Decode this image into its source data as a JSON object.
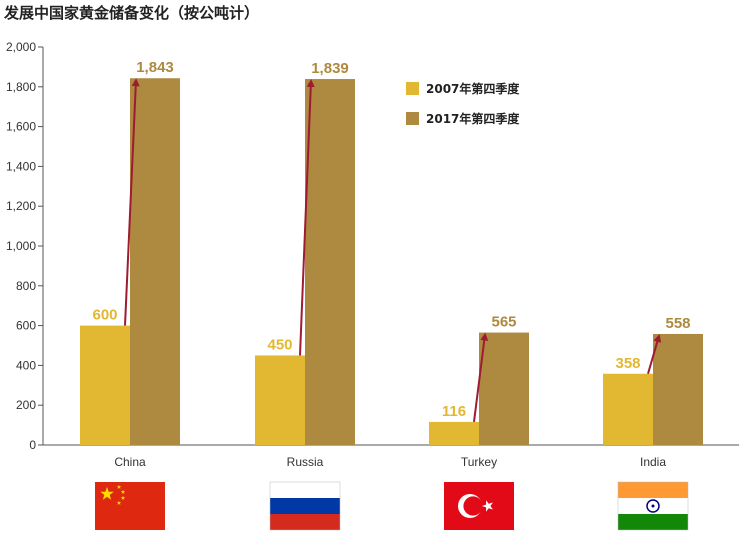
{
  "chart_data": {
    "type": "bar",
    "title": "发展中国家黄金储备变化（按公吨计）",
    "categories": [
      "China",
      "Russia",
      "Turkey",
      "India"
    ],
    "series": [
      {
        "name": "2007年第四季度",
        "values": [
          600,
          450,
          116,
          358
        ],
        "labels": [
          "600",
          "450",
          "116",
          "358"
        ],
        "color": "#E2B731"
      },
      {
        "name": "2017年第四季度",
        "values": [
          1843,
          1839,
          565,
          558
        ],
        "labels": [
          "1,843",
          "1,839",
          "565",
          "558"
        ],
        "color": "#AD8A3F"
      }
    ],
    "ylim": [
      0,
      2000
    ],
    "yticks": [
      "0",
      "200",
      "400",
      "600",
      "800",
      "1,000",
      "1,200",
      "1,400",
      "1,600",
      "1,800",
      "2,000"
    ],
    "ytick_values": [
      0,
      200,
      400,
      600,
      800,
      1000,
      1200,
      1400,
      1600,
      1800,
      2000
    ],
    "arrow_color": "#9E1B32",
    "legend_position": "top-center",
    "grid": false,
    "flags": [
      "china-flag",
      "russia-flag",
      "turkey-flag",
      "india-flag"
    ]
  }
}
